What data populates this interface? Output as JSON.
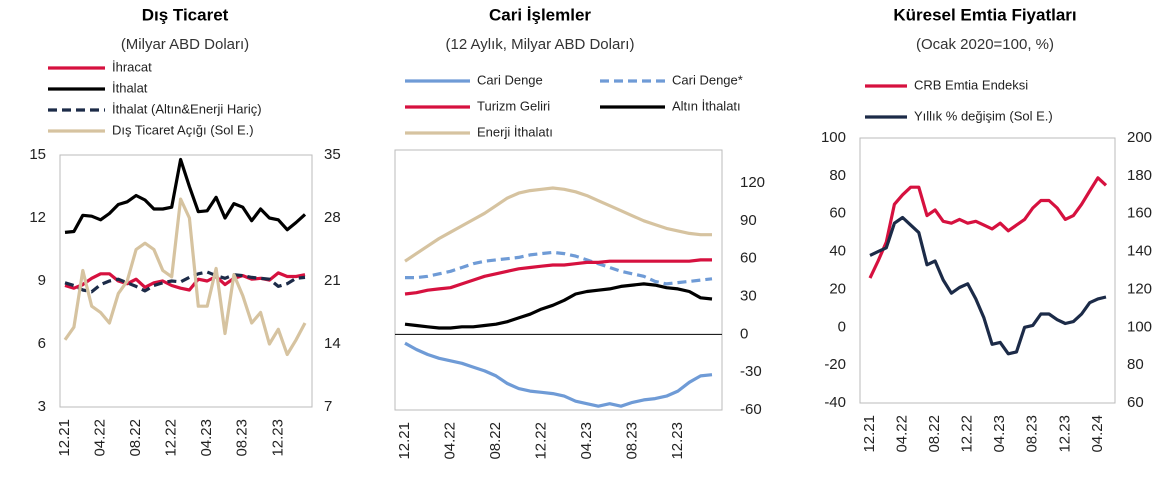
{
  "chart_data": [
    {
      "type": "line",
      "title": "Dış Ticaret",
      "subtitle": "(Milyar ABD Doları)",
      "categories": [
        "12.21",
        null,
        null,
        null,
        "04.22",
        null,
        null,
        null,
        "08.22",
        null,
        null,
        null,
        "12.22",
        null,
        null,
        null,
        "04.23",
        null,
        null,
        null,
        "08.23",
        null,
        null,
        null,
        "12.23",
        null,
        null,
        null
      ],
      "ylim": [
        3,
        15
      ],
      "yticks": [
        15,
        12,
        9,
        6,
        3
      ],
      "y2lim": [
        7,
        35
      ],
      "y2ticks": [
        35,
        28,
        21,
        14,
        7
      ],
      "series": [
        {
          "name": "İhracat",
          "color": "#d6113f",
          "axis": "y2",
          "values": [
            20.5,
            20.2,
            20.6,
            21.3,
            21.8,
            21.8,
            21,
            20.7,
            21.2,
            20.3,
            20.8,
            21,
            20.5,
            20.2,
            20,
            21.2,
            21,
            21.5,
            20.6,
            21.3,
            21.6,
            21.2,
            21.3,
            21.1,
            21.9,
            21.5,
            21.5,
            21.7
          ]
        },
        {
          "name": "İthalat",
          "color": "#000000",
          "axis": "y2",
          "values": [
            26.4,
            26.5,
            28.3,
            28.2,
            27.8,
            28.5,
            29.5,
            29.8,
            30.5,
            30,
            29,
            29,
            29.2,
            34.5,
            31.5,
            28.7,
            28.8,
            30.3,
            28,
            29.6,
            29.2,
            27.7,
            29,
            28,
            27.8,
            26.7,
            27.5,
            28.4
          ]
        },
        {
          "name": "İthalat (Altın&Enerji Hariç)",
          "color": "#1c2b48",
          "axis": "y2",
          "dashed": true,
          "values": [
            20.8,
            20.5,
            20,
            19.8,
            20.6,
            21,
            21.2,
            20.8,
            20.4,
            19.9,
            20.5,
            20.8,
            21,
            20.9,
            21.4,
            21.8,
            22,
            21.6,
            21.3,
            21.7,
            21.6,
            21.4,
            21.3,
            21.2,
            20.4,
            20.7,
            21.3,
            21.4
          ]
        },
        {
          "name": "Dış Ticaret Açığı (Sol E.)",
          "color": "#d6c3a0",
          "values": [
            6.2,
            6.8,
            9.5,
            7.8,
            7.5,
            7,
            8.4,
            9,
            10.5,
            10.8,
            10.5,
            9.5,
            9.2,
            12.9,
            12,
            7.8,
            7.8,
            9.6,
            6.5,
            9.3,
            8.3,
            7,
            7.5,
            6,
            6.7,
            5.5,
            6.2,
            7
          ]
        }
      ]
    },
    {
      "type": "line",
      "title": "Cari İşlemler",
      "subtitle": "(12 Aylık, Milyar ABD Doları)",
      "categories": [
        "12.21",
        null,
        null,
        null,
        "04.22",
        null,
        null,
        null,
        "08.22",
        null,
        null,
        null,
        "12.22",
        null,
        null,
        null,
        "04.23",
        null,
        null,
        null,
        "08.23",
        null,
        null,
        null,
        "12.23",
        null,
        null,
        null
      ],
      "ylim": [
        -60,
        120
      ],
      "yticks": [
        120,
        90,
        60,
        30,
        0,
        -30,
        -60
      ],
      "y_axis_side": "right",
      "zero_line": true,
      "series": [
        {
          "name": "Cari Denge",
          "color": "#6f9bd6",
          "values": [
            -7,
            -12,
            -16,
            -19,
            -21,
            -23,
            -26,
            -29,
            -33,
            -39,
            -43,
            -45,
            -46,
            -47,
            -49,
            -53,
            -55,
            -57,
            -55,
            -57,
            -54,
            -52,
            -51,
            -49,
            -45,
            -38,
            -33,
            -32
          ]
        },
        {
          "name": "Cari Denge*",
          "color": "#6f9bd6",
          "dashed": true,
          "values": [
            45,
            45,
            46,
            48,
            50,
            53,
            56,
            58,
            59,
            60,
            61,
            63,
            64,
            65,
            64,
            62,
            59,
            56,
            53,
            50,
            48,
            46,
            42,
            40,
            41,
            42,
            43,
            44
          ]
        },
        {
          "name": "Turizm Geliri",
          "color": "#d6113f",
          "values": [
            32,
            33,
            35,
            36,
            37,
            40,
            43,
            46,
            48,
            50,
            52,
            53,
            54,
            55,
            55,
            56,
            57,
            57,
            58,
            58,
            58,
            58,
            58,
            58,
            58,
            58,
            59,
            59
          ]
        },
        {
          "name": "Altın İthalatı",
          "color": "#000000",
          "values": [
            8,
            7,
            6,
            5,
            5,
            6,
            6,
            7,
            8,
            10,
            13,
            16,
            20,
            23,
            27,
            32,
            34,
            35,
            36,
            38,
            39,
            40,
            39,
            37,
            36,
            34,
            29,
            28
          ]
        },
        {
          "name": "Enerji İthalatı",
          "color": "#d6c3a0",
          "values": [
            58,
            64,
            70,
            76,
            81,
            86,
            91,
            96,
            102,
            108,
            112,
            114,
            115,
            116,
            115,
            113,
            110,
            106,
            102,
            98,
            94,
            90,
            87,
            84,
            82,
            80,
            79,
            79
          ]
        }
      ]
    },
    {
      "type": "line",
      "title": "Küresel Emtia Fiyatları",
      "subtitle": "(Ocak 2020=100, %)",
      "categories": [
        "12.21",
        null,
        null,
        null,
        "04.22",
        null,
        null,
        null,
        "08.22",
        null,
        null,
        null,
        "12.22",
        null,
        null,
        null,
        "04.23",
        null,
        null,
        null,
        "08.23",
        null,
        null,
        null,
        "12.23",
        null,
        null,
        null,
        "04.24",
        null
      ],
      "ylim": [
        -40,
        100
      ],
      "yticks": [
        100,
        80,
        60,
        40,
        20,
        0,
        -20,
        -40
      ],
      "y2lim": [
        60,
        200
      ],
      "y2ticks": [
        200,
        180,
        160,
        140,
        120,
        100,
        80,
        60
      ],
      "series": [
        {
          "name": "CRB Emtia Endeksi",
          "color": "#d6113f",
          "axis": "y2",
          "values": [
            126,
            135,
            145,
            165,
            170,
            174,
            174,
            159,
            162,
            156,
            155,
            157,
            155,
            156,
            154,
            152,
            155,
            151,
            154,
            157,
            163,
            167,
            167,
            163,
            157,
            159,
            165,
            172,
            179,
            175
          ]
        },
        {
          "name": "Yıllık % değişim (Sol E.)",
          "color": "#1c2b48",
          "values": [
            38,
            40,
            42,
            55,
            58,
            54,
            50,
            33,
            35,
            25,
            18,
            21,
            23,
            15,
            5,
            -9,
            -8,
            -14,
            -13,
            0,
            1,
            7,
            7,
            4,
            2,
            3,
            7,
            13,
            15,
            16
          ]
        }
      ]
    }
  ]
}
